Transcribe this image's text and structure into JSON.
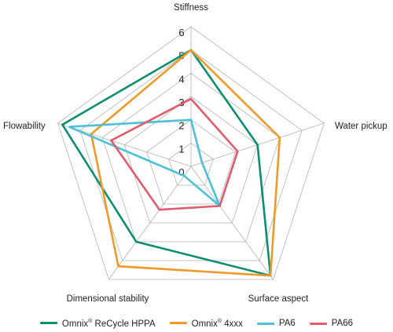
{
  "chart_data": {
    "type": "radar",
    "axes": [
      "Stiffness",
      "Water pickup",
      "Surface aspect",
      "Dimensional stability",
      "Flowability"
    ],
    "scale": {
      "min": 0,
      "max": 6,
      "ticks": [
        "0",
        "1",
        "2",
        "3",
        "4",
        "5",
        "6"
      ]
    },
    "grid": true,
    "legend_position": "bottom",
    "series": [
      {
        "name": "Omnix® ReCycle HPPA",
        "color": "#0b8f6e",
        "values": [
          5,
          3,
          5.8,
          4,
          5.8
        ]
      },
      {
        "name": "Omnix® 4xxx",
        "color": "#ef9a28",
        "values": [
          5,
          4,
          5.8,
          5.3,
          4.5
        ]
      },
      {
        "name": "PA6",
        "color": "#4cc1d8",
        "values": [
          2,
          0.5,
          2.1,
          0.5,
          5.5
        ]
      },
      {
        "name": "PA66",
        "color": "#e05c6c",
        "values": [
          2.9,
          2.1,
          2.1,
          2.3,
          3.6
        ]
      }
    ]
  },
  "legend": {
    "items": [
      {
        "brand": "Omnix",
        "mark": "®",
        "rest": " ReCycle HPPA"
      },
      {
        "brand": "Omnix",
        "mark": "®",
        "rest": " 4xxx"
      },
      {
        "brand": "PA6",
        "mark": "",
        "rest": ""
      },
      {
        "brand": "PA66",
        "mark": "",
        "rest": ""
      }
    ]
  }
}
